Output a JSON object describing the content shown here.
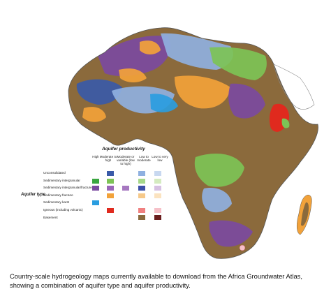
{
  "legend": {
    "title": "Aquifer productivity",
    "type_label": "Aquifer type",
    "columns": [
      "High",
      "Moderate to high",
      "Moderate or variable (low to high)",
      "Low to moderate",
      "Low to very low"
    ],
    "rows": [
      {
        "label": "Unconsolidated",
        "colors": [
          null,
          "#3a5aa8",
          null,
          "#8fb0e0",
          "#c8d8f0"
        ]
      },
      {
        "label": "Sedimentary intergranular",
        "colors": [
          "#3aa640",
          "#7dc356",
          null,
          "#a6d88a",
          "#d4ebc0"
        ]
      },
      {
        "label": "Sedimentary intergranular/fracture",
        "colors": [
          "#7b4aa0",
          "#9a66b8",
          "#a678c0",
          "#3d4fa8",
          "#d6c0e2"
        ]
      },
      {
        "label": "Sedimentary fracture",
        "colors": [
          null,
          "#f2a23a",
          null,
          "#f6c98a",
          "#fbe3c0"
        ]
      },
      {
        "label": "Sedimentary karst",
        "colors": [
          "#2a9de0",
          null,
          null,
          null,
          null
        ]
      },
      {
        "label": "Igneous (including volcanic)",
        "colors": [
          null,
          "#e02a1e",
          null,
          "#f08080",
          "#f6c0c8"
        ]
      },
      {
        "label": "Basement",
        "colors": [
          null,
          null,
          null,
          "#8a6a3e",
          "#6b1e1e"
        ]
      }
    ]
  },
  "caption": "Country-scale hydrogeology maps currently available to download from the Africa Groundwater Atlas, showing a combination of aquifer type and aquifer productivity.",
  "map_colors": {
    "basement": "#8b6a3c",
    "unconsolidated": "#8fb0e0",
    "sed_intergranular": "#7dc356",
    "sed_fracture": "#f2a23a",
    "intergranular_fracture": "#7b4aa0",
    "karst": "#2a9de0",
    "igneous": "#e02a1e",
    "blue_dark": "#3a5aa8",
    "outline": "#777777"
  }
}
